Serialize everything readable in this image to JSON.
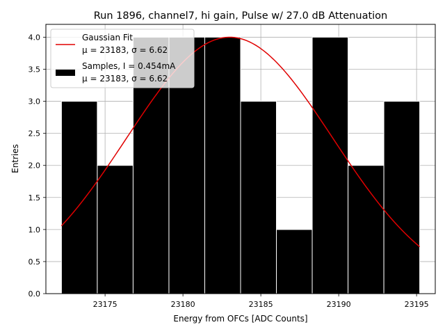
{
  "chart_data": {
    "type": "bar",
    "title": "Run 1896, channel7, hi gain, Pulse w/ 27.0 dB Attenuation",
    "xlabel": "Energy from OFCs [ADC Counts]",
    "ylabel": "Entries",
    "xlim": [
      171.2,
      196.2
    ],
    "ylim": [
      0,
      4.2
    ],
    "x_offset": 23000,
    "xticks": [
      175,
      180,
      185,
      190,
      195
    ],
    "xtick_labels": [
      "23175",
      "23180",
      "23185",
      "23190",
      "23195"
    ],
    "yticks": [
      0,
      0.5,
      1,
      1.5,
      2,
      2.5,
      3,
      3.5,
      4
    ],
    "ytick_labels": [
      "0.0",
      "0.5",
      "1.0",
      "1.5",
      "2.0",
      "2.5",
      "3.0",
      "3.5",
      "4.0"
    ],
    "grid": true,
    "legend_position": "top-left",
    "histogram": {
      "name": "Samples, I = 0.454mA",
      "stats": "μ = 23183, σ = 6.62",
      "color": "#000000",
      "edge_color": "#ffffff",
      "bin_edges": [
        172.2,
        174.5,
        176.8,
        179.1,
        181.4,
        183.7,
        186.0,
        188.3,
        190.6,
        192.9,
        195.2
      ],
      "counts": [
        3,
        2,
        4,
        4,
        4,
        3,
        1,
        4,
        2,
        3
      ]
    },
    "fit": {
      "name": "Gaussian Fit",
      "stats": "μ = 23183, σ = 6.62",
      "color": "#e00000",
      "amplitude": 4.0,
      "mean": 183.0,
      "sigma": 6.62,
      "x_range": [
        172.2,
        195.2
      ]
    }
  }
}
